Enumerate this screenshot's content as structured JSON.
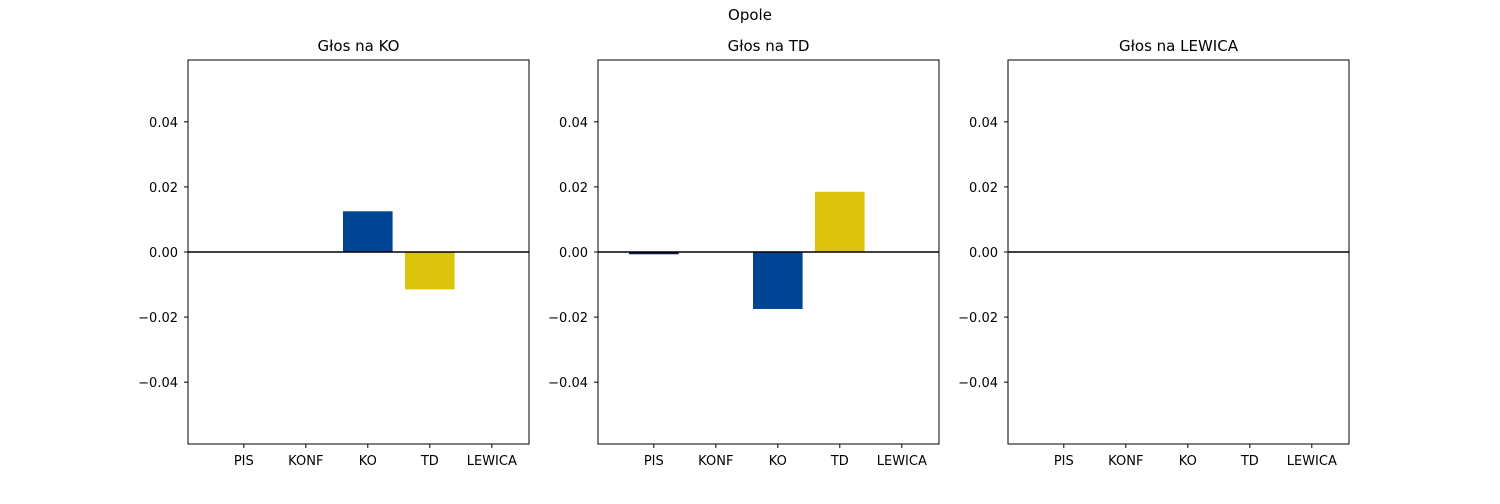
{
  "figure": {
    "suptitle": "Opole"
  },
  "chart_data": [
    {
      "type": "bar",
      "title": "Głos na KO",
      "categories": [
        "PIS",
        "KONF",
        "KO",
        "TD",
        "LEWICA"
      ],
      "values": [
        0.0,
        0.0,
        0.0125,
        -0.0115,
        0.0
      ],
      "colors": [
        "#0d1b4a",
        "#1c1c1c",
        "#004494",
        "#dcc30e",
        "#b4152b"
      ],
      "ylim": [
        -0.059,
        0.059
      ],
      "yticks": [
        -0.04,
        -0.02,
        0.0,
        0.02,
        0.04
      ],
      "ytick_labels": [
        "−0.04",
        "−0.02",
        "0.00",
        "0.02",
        "0.04"
      ],
      "zero_line": true,
      "grid": false
    },
    {
      "type": "bar",
      "title": "Głos na TD",
      "categories": [
        "PIS",
        "KONF",
        "KO",
        "TD",
        "LEWICA"
      ],
      "values": [
        -0.0007,
        0.0,
        -0.0175,
        0.0185,
        0.0
      ],
      "colors": [
        "#0d1b4a",
        "#1c1c1c",
        "#004494",
        "#dcc30e",
        "#b4152b"
      ],
      "ylim": [
        -0.059,
        0.059
      ],
      "yticks": [
        -0.04,
        -0.02,
        0.0,
        0.02,
        0.04
      ],
      "ytick_labels": [
        "−0.04",
        "−0.02",
        "0.00",
        "0.02",
        "0.04"
      ],
      "zero_line": true,
      "grid": false
    },
    {
      "type": "bar",
      "title": "Głos na LEWICA",
      "categories": [
        "PIS",
        "KONF",
        "KO",
        "TD",
        "LEWICA"
      ],
      "values": [
        0.0,
        0.0,
        0.0,
        0.0,
        0.0
      ],
      "colors": [
        "#0d1b4a",
        "#1c1c1c",
        "#004494",
        "#dcc30e",
        "#b4152b"
      ],
      "ylim": [
        -0.059,
        0.059
      ],
      "yticks": [
        -0.04,
        -0.02,
        0.0,
        0.02,
        0.04
      ],
      "ytick_labels": [
        "−0.04",
        "−0.02",
        "0.00",
        "0.02",
        "0.04"
      ],
      "zero_line": true,
      "grid": false
    }
  ]
}
